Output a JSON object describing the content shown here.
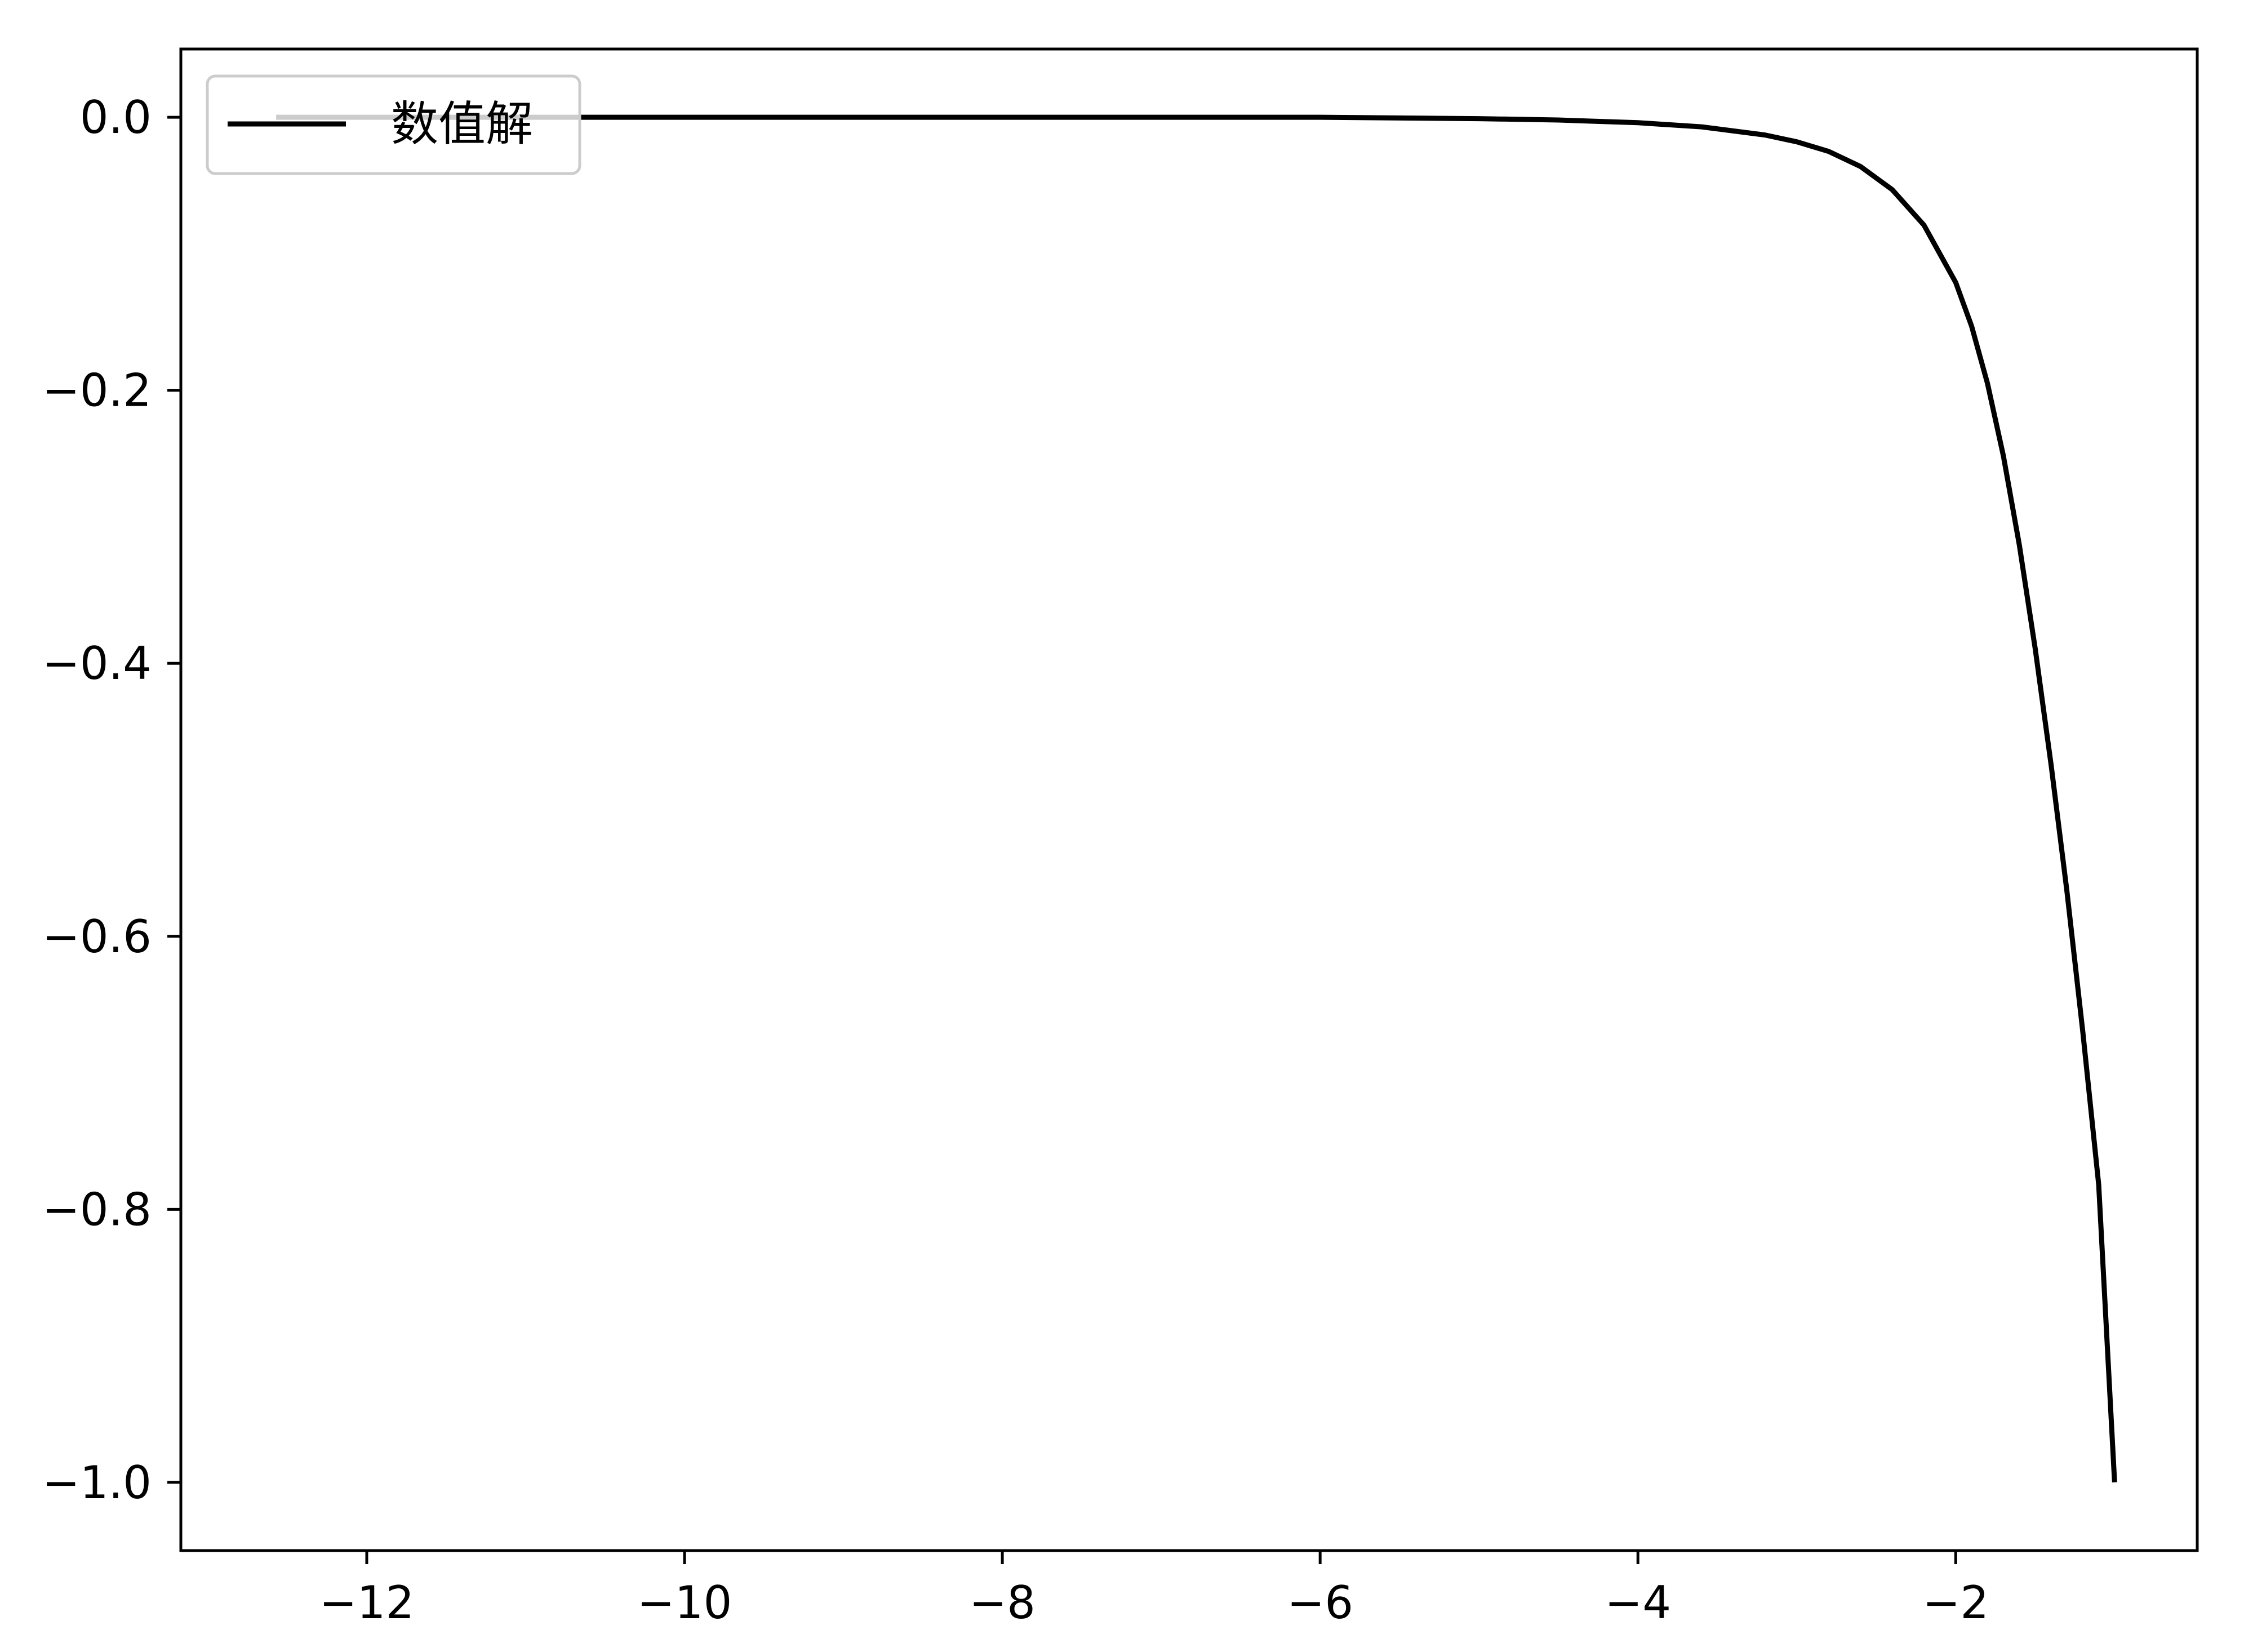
{
  "chart_data": {
    "type": "line",
    "title": "",
    "xlabel": "",
    "ylabel": "",
    "xlim": [
      -13.17,
      -0.48
    ],
    "ylim": [
      -1.05,
      0.05
    ],
    "x_ticks": [
      -12,
      -10,
      -8,
      -6,
      -4,
      -2
    ],
    "x_tick_labels": [
      "−12",
      "−10",
      "−8",
      "−6",
      "−4",
      "−2"
    ],
    "y_ticks": [
      0.0,
      -0.2,
      -0.4,
      -0.6,
      -0.8,
      -1.0
    ],
    "y_tick_labels": [
      "0.0",
      "−0.2",
      "−0.4",
      "−0.6",
      "−0.8",
      "−1.0"
    ],
    "grid": false,
    "legend_position": "top-left",
    "series": [
      {
        "name": "数值解",
        "color": "#000000",
        "x": [
          -12.57,
          -11.0,
          -10.0,
          -9.0,
          -8.0,
          -7.0,
          -6.0,
          -5.0,
          -4.5,
          -4.0,
          -3.6,
          -3.2,
          -3.0,
          -2.8,
          -2.6,
          -2.4,
          -2.2,
          -2.0,
          -1.9,
          -1.8,
          -1.7,
          -1.6,
          -1.5,
          -1.4,
          -1.3,
          -1.2,
          -1.1,
          -1.0
        ],
        "y": [
          0.0,
          0.0,
          0.0,
          0.0,
          0.0,
          0.0,
          0.0,
          -0.001,
          -0.002,
          -0.004,
          -0.007,
          -0.013,
          -0.018,
          -0.025,
          -0.036,
          -0.053,
          -0.079,
          -0.121,
          -0.153,
          -0.195,
          -0.248,
          -0.313,
          -0.389,
          -0.474,
          -0.567,
          -0.67,
          -0.782,
          -1.0
        ]
      }
    ]
  }
}
